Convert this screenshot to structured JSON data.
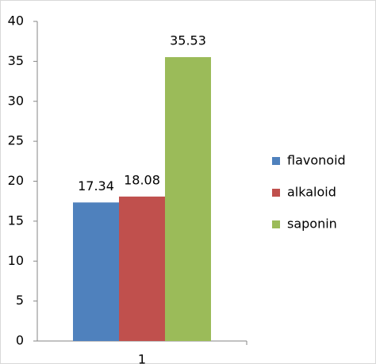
{
  "chart_data": {
    "type": "bar",
    "categories": [
      "1"
    ],
    "series": [
      {
        "name": "flavonoid",
        "color": "#4f81bd",
        "values": [
          17.34
        ]
      },
      {
        "name": "alkaloid",
        "color": "#c0504d",
        "values": [
          18.08
        ]
      },
      {
        "name": "saponin",
        "color": "#9bbb59",
        "values": [
          35.53
        ]
      }
    ],
    "ylim": [
      0,
      40
    ],
    "yticks": [
      0,
      5,
      10,
      15,
      20,
      25,
      30,
      35,
      40
    ],
    "legend": "right",
    "grid": false
  }
}
